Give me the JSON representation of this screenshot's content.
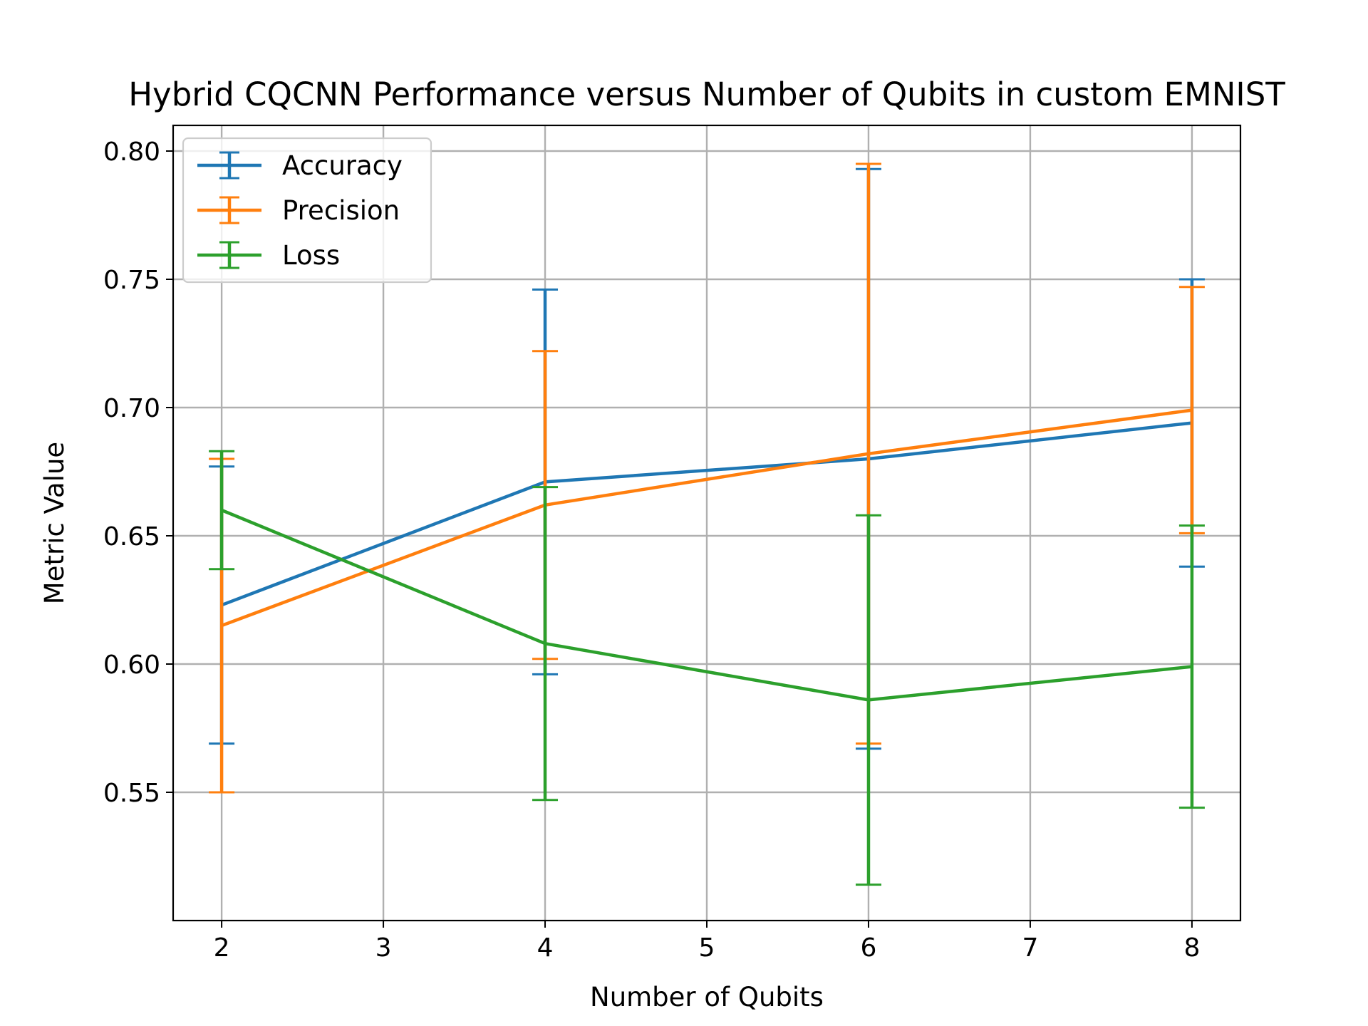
{
  "chart_data": {
    "type": "line",
    "title": "Hybrid CQCNN Performance versus Number of Qubits in custom EMNIST",
    "xlabel": "Number of Qubits",
    "ylabel": "Metric Value",
    "x": [
      2,
      4,
      6,
      8
    ],
    "xlim": [
      1.7,
      8.3
    ],
    "ylim": [
      0.5,
      0.81
    ],
    "xticks": [
      2,
      3,
      4,
      5,
      6,
      7,
      8
    ],
    "xtick_labels": [
      "2",
      "3",
      "4",
      "5",
      "6",
      "7",
      "8"
    ],
    "yticks": [
      0.55,
      0.6,
      0.65,
      0.7,
      0.75,
      0.8
    ],
    "ytick_labels": [
      "0.55",
      "0.60",
      "0.65",
      "0.70",
      "0.75",
      "0.80"
    ],
    "grid": true,
    "legend_position": "top-left",
    "series": [
      {
        "name": "Accuracy",
        "color": "#1f77b4",
        "values": [
          0.623,
          0.671,
          0.68,
          0.694
        ],
        "errors": [
          0.054,
          0.075,
          0.113,
          0.056
        ]
      },
      {
        "name": "Precision",
        "color": "#ff7f0e",
        "values": [
          0.615,
          0.662,
          0.682,
          0.699
        ],
        "errors": [
          0.065,
          0.06,
          0.113,
          0.048
        ]
      },
      {
        "name": "Loss",
        "color": "#2ca02c",
        "values": [
          0.66,
          0.608,
          0.586,
          0.599
        ],
        "errors": [
          0.023,
          0.061,
          0.072,
          0.055
        ]
      }
    ]
  }
}
